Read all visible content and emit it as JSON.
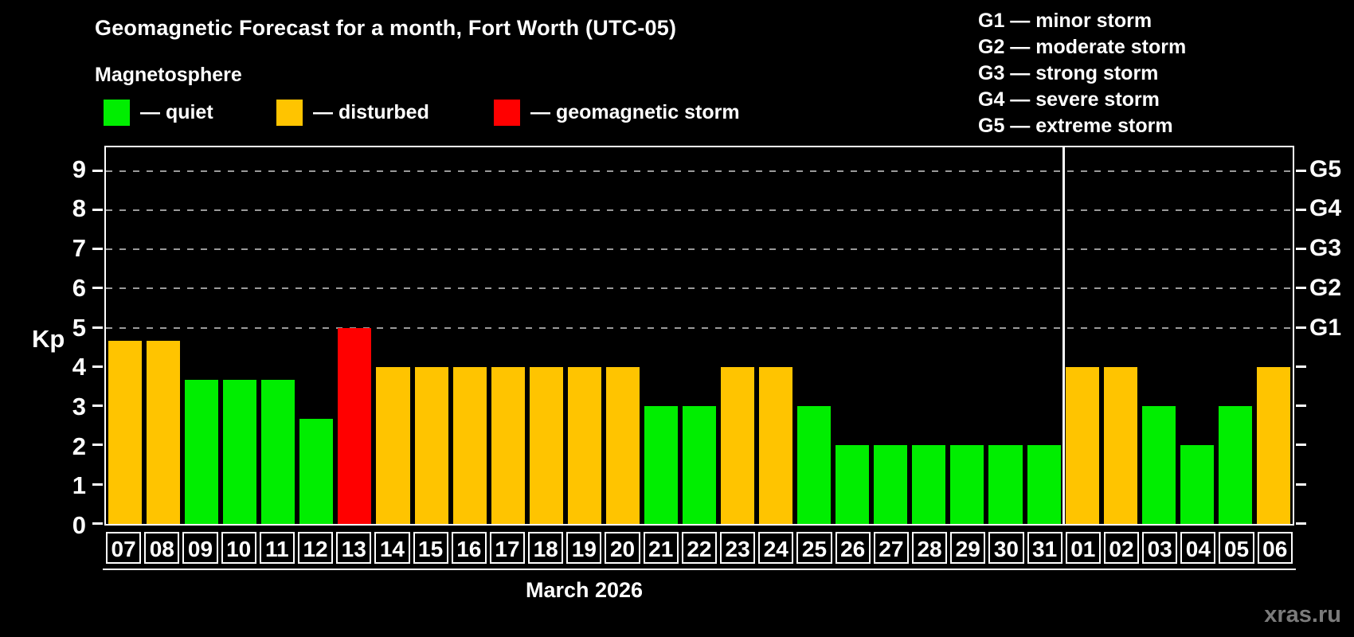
{
  "page": {
    "background": "#000000"
  },
  "header": {
    "title": "Geomagnetic Forecast for a month, Fort Worth (UTC-05)",
    "subtitle": "Magnetosphere"
  },
  "legend": {
    "items": [
      {
        "key": "quiet",
        "label": "— quiet",
        "color": "#00ee00"
      },
      {
        "key": "disturbed",
        "label": "— disturbed",
        "color": "#ffc400"
      },
      {
        "key": "storm",
        "label": "— geomagnetic storm",
        "color": "#ff0000"
      }
    ]
  },
  "g_legend": {
    "lines": [
      "G1 — minor storm",
      "G2 — moderate storm",
      "G3 — strong storm",
      "G4 — severe storm",
      "G5 — extreme storm"
    ]
  },
  "footer": {
    "watermark": "xras.ru"
  },
  "chart_data": {
    "type": "bar",
    "title": "Geomagnetic Forecast for a month, Fort Worth (UTC-05)",
    "subtitle": "Magnetosphere",
    "xlabel": "March 2026",
    "ylabel": "Kp",
    "ylim": [
      0,
      9.6
    ],
    "yticks": [
      0,
      1,
      2,
      3,
      4,
      5,
      6,
      7,
      8,
      9
    ],
    "gridlines_at": [
      5,
      6,
      7,
      8,
      9
    ],
    "grid_color": "#9a9a9a",
    "legend_position": "top-left",
    "right_axis": [
      {
        "label": "G1",
        "kp": 5
      },
      {
        "label": "G2",
        "kp": 6
      },
      {
        "label": "G3",
        "kp": 7
      },
      {
        "label": "G4",
        "kp": 8
      },
      {
        "label": "G5",
        "kp": 9
      }
    ],
    "status_colors": {
      "quiet": "#00ee00",
      "disturbed": "#ffc400",
      "storm": "#ff0000"
    },
    "month_separator_before_index": 25,
    "bars": [
      {
        "day": "07",
        "kp": 4.67,
        "status": "disturbed"
      },
      {
        "day": "08",
        "kp": 4.67,
        "status": "disturbed"
      },
      {
        "day": "09",
        "kp": 3.67,
        "status": "quiet"
      },
      {
        "day": "10",
        "kp": 3.67,
        "status": "quiet"
      },
      {
        "day": "11",
        "kp": 3.67,
        "status": "quiet"
      },
      {
        "day": "12",
        "kp": 2.67,
        "status": "quiet"
      },
      {
        "day": "13",
        "kp": 5.0,
        "status": "storm"
      },
      {
        "day": "14",
        "kp": 4.0,
        "status": "disturbed"
      },
      {
        "day": "15",
        "kp": 4.0,
        "status": "disturbed"
      },
      {
        "day": "16",
        "kp": 4.0,
        "status": "disturbed"
      },
      {
        "day": "17",
        "kp": 4.0,
        "status": "disturbed"
      },
      {
        "day": "18",
        "kp": 4.0,
        "status": "disturbed"
      },
      {
        "day": "19",
        "kp": 4.0,
        "status": "disturbed"
      },
      {
        "day": "20",
        "kp": 4.0,
        "status": "disturbed"
      },
      {
        "day": "21",
        "kp": 3.0,
        "status": "quiet"
      },
      {
        "day": "22",
        "kp": 3.0,
        "status": "quiet"
      },
      {
        "day": "23",
        "kp": 4.0,
        "status": "disturbed"
      },
      {
        "day": "24",
        "kp": 4.0,
        "status": "disturbed"
      },
      {
        "day": "25",
        "kp": 3.0,
        "status": "quiet"
      },
      {
        "day": "26",
        "kp": 2.0,
        "status": "quiet"
      },
      {
        "day": "27",
        "kp": 2.0,
        "status": "quiet"
      },
      {
        "day": "28",
        "kp": 2.0,
        "status": "quiet"
      },
      {
        "day": "29",
        "kp": 2.0,
        "status": "quiet"
      },
      {
        "day": "30",
        "kp": 2.0,
        "status": "quiet"
      },
      {
        "day": "31",
        "kp": 2.0,
        "status": "quiet"
      },
      {
        "day": "01",
        "kp": 4.0,
        "status": "disturbed"
      },
      {
        "day": "02",
        "kp": 4.0,
        "status": "disturbed"
      },
      {
        "day": "03",
        "kp": 3.0,
        "status": "quiet"
      },
      {
        "day": "04",
        "kp": 2.0,
        "status": "quiet"
      },
      {
        "day": "05",
        "kp": 3.0,
        "status": "quiet"
      },
      {
        "day": "06",
        "kp": 4.0,
        "status": "disturbed"
      }
    ]
  }
}
